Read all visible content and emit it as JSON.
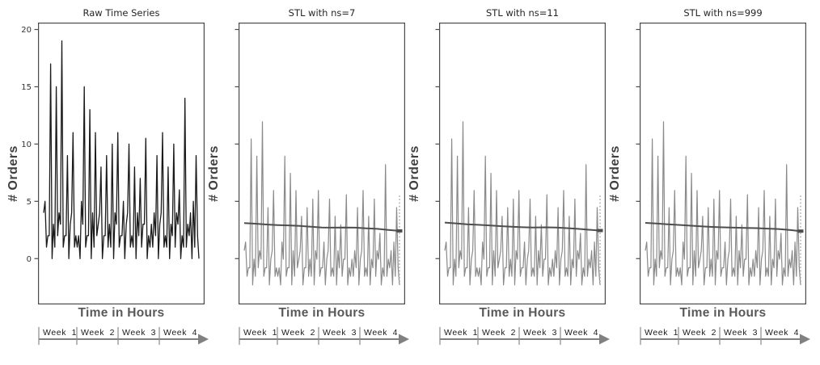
{
  "figure": {
    "background": "#ffffff"
  },
  "colors": {
    "frame": "#4a4a4a",
    "raw_series": "#1a1a1a",
    "stl_series": "#8a8a8a",
    "trend_line": "#4d4d4d",
    "end_range_dots": "#b0b0b0",
    "week_axis": "#808080",
    "axis_label_text": "#595959",
    "tick_text": "#333333"
  },
  "chart_data": {
    "type": "line",
    "layout": "4 horizontal small multiples, shared hidden x-axis annotated with week arrow",
    "ylim": [
      -4,
      20.6
    ],
    "yticks": [
      0,
      5,
      10,
      15,
      20
    ],
    "week_axis": {
      "labels": [
        "Week 1",
        "Week 2",
        "Week 3",
        "Week 4"
      ]
    },
    "stl_seasonal": [
      0.7,
      1.45,
      -1.55,
      -0.8,
      -0.8,
      10.45,
      -2.3,
      -0.05,
      -1.55,
      8.95,
      -0.8,
      0.7,
      -0.05,
      11.95,
      -1.55,
      -0.8,
      -0.8,
      4.45,
      -2.3,
      -0.05,
      0.7,
      5.95,
      -1.55,
      -0.8,
      -1.55,
      -0.8,
      -2.3,
      1.45,
      -0.05,
      8.95,
      -1.55,
      -0.8,
      -0.8,
      7.45,
      -2.3,
      0.7,
      -1.55,
      5.95,
      -0.8,
      -0.05,
      0.7,
      3.7,
      -2.3,
      -0.8,
      -0.8,
      4.45,
      -1.55,
      -0.05,
      -1.55,
      5.2,
      -2.3,
      0.7,
      -0.05,
      5.95,
      -1.55,
      -0.8,
      -0.8,
      1.45,
      -2.3,
      -0.05,
      0.7,
      5.2,
      -1.55,
      -0.8,
      -1.55,
      3.7,
      -2.3,
      0.7,
      -0.8,
      2.95,
      -1.55,
      -0.05,
      -0.05,
      5.58,
      -2.3,
      -0.8,
      -1.55,
      -0.05,
      -1.55,
      0.7,
      -0.8,
      4.45,
      -2.3,
      -0.05,
      0.7,
      5.95,
      -1.55,
      -0.8,
      -1.55,
      3.7,
      -2.3,
      -0.05,
      -0.8,
      5.2,
      -1.55,
      0.7,
      -0.05,
      2.2,
      -2.3,
      -0.8,
      -1.55,
      8.2,
      -1.55,
      -0.05,
      -0.8,
      0.7,
      -2.3,
      1.45,
      -1.55,
      4.45,
      -0.8,
      -2.3
    ],
    "charts": [
      {
        "title": "Raw Time Series",
        "ylabel": "# Orders",
        "xlabel": "Time in Hours",
        "show_ytick_labels": true,
        "series": [
          {
            "name": "raw",
            "color": "#1a1a1a",
            "width": 1.3,
            "values": [
              4,
              5,
              1,
              2,
              2,
              17,
              0,
              3,
              1,
              15,
              2,
              4,
              3,
              19,
              1,
              2,
              2,
              9,
              0,
              3,
              4,
              11,
              1,
              2,
              1,
              2,
              0,
              5,
              3,
              15,
              1,
              2,
              2,
              13,
              0,
              4,
              1,
              11,
              2,
              3,
              4,
              8,
              0,
              2,
              2,
              9,
              1,
              3,
              1,
              10,
              0,
              4,
              3,
              11,
              1,
              2,
              2,
              5,
              0,
              3,
              4,
              10,
              1,
              2,
              1,
              8,
              0,
              4,
              2,
              7,
              1,
              3,
              3,
              10.5,
              0,
              2,
              1,
              3,
              1,
              4,
              2,
              9,
              0,
              3,
              4,
              11,
              1,
              2,
              1,
              8,
              0,
              3,
              2,
              10,
              1,
              4,
              3,
              6,
              0,
              2,
              1,
              14,
              1,
              3,
              2,
              4,
              0,
              5,
              1,
              9,
              2,
              0
            ]
          }
        ]
      },
      {
        "title": "STL with ns=7",
        "ylabel": "# Orders",
        "xlabel": "Time in Hours",
        "show_ytick_labels": false,
        "series": [
          {
            "name": "seasonal-plus-remainder",
            "color": "#8a8a8a",
            "width": 1.2,
            "values_ref": "stl_seasonal"
          },
          {
            "name": "trend",
            "color": "#4d4d4d",
            "width": 2,
            "values": [
              3.1,
              3.05,
              2.98,
              2.93,
              2.9,
              2.85,
              2.78,
              2.72,
              2.7,
              2.72,
              2.7,
              2.65,
              2.6,
              2.5,
              2.42
            ]
          }
        ],
        "end_range": {
          "from": -2.4,
          "to": 5.5,
          "color": "#b0b0b0",
          "marker_color": "#4d4d4d"
        }
      },
      {
        "title": "STL with ns=11",
        "ylabel": "# Orders",
        "xlabel": "Time in Hours",
        "show_ytick_labels": false,
        "series": [
          {
            "name": "seasonal-plus-remainder",
            "color": "#8a8a8a",
            "width": 1.2,
            "values_ref": "stl_seasonal"
          },
          {
            "name": "trend",
            "color": "#4d4d4d",
            "width": 2,
            "values": [
              3.15,
              3.08,
              3.0,
              2.95,
              2.9,
              2.84,
              2.78,
              2.74,
              2.72,
              2.73,
              2.71,
              2.66,
              2.6,
              2.52,
              2.45
            ]
          }
        ],
        "end_range": {
          "from": -2.4,
          "to": 5.5,
          "color": "#b0b0b0",
          "marker_color": "#4d4d4d"
        }
      },
      {
        "title": "STL with ns=999",
        "ylabel": "# Orders",
        "xlabel": "Time in Hours",
        "show_ytick_labels": false,
        "series": [
          {
            "name": "seasonal-plus-remainder",
            "color": "#8a8a8a",
            "width": 1.2,
            "values_ref": "stl_seasonal"
          },
          {
            "name": "trend",
            "color": "#4d4d4d",
            "width": 2,
            "values": [
              3.12,
              3.06,
              3.0,
              2.94,
              2.88,
              2.82,
              2.77,
              2.73,
              2.7,
              2.68,
              2.66,
              2.62,
              2.58,
              2.5,
              2.4
            ]
          }
        ],
        "end_range": {
          "from": -2.4,
          "to": 5.5,
          "color": "#b0b0b0",
          "marker_color": "#4d4d4d"
        }
      }
    ]
  }
}
